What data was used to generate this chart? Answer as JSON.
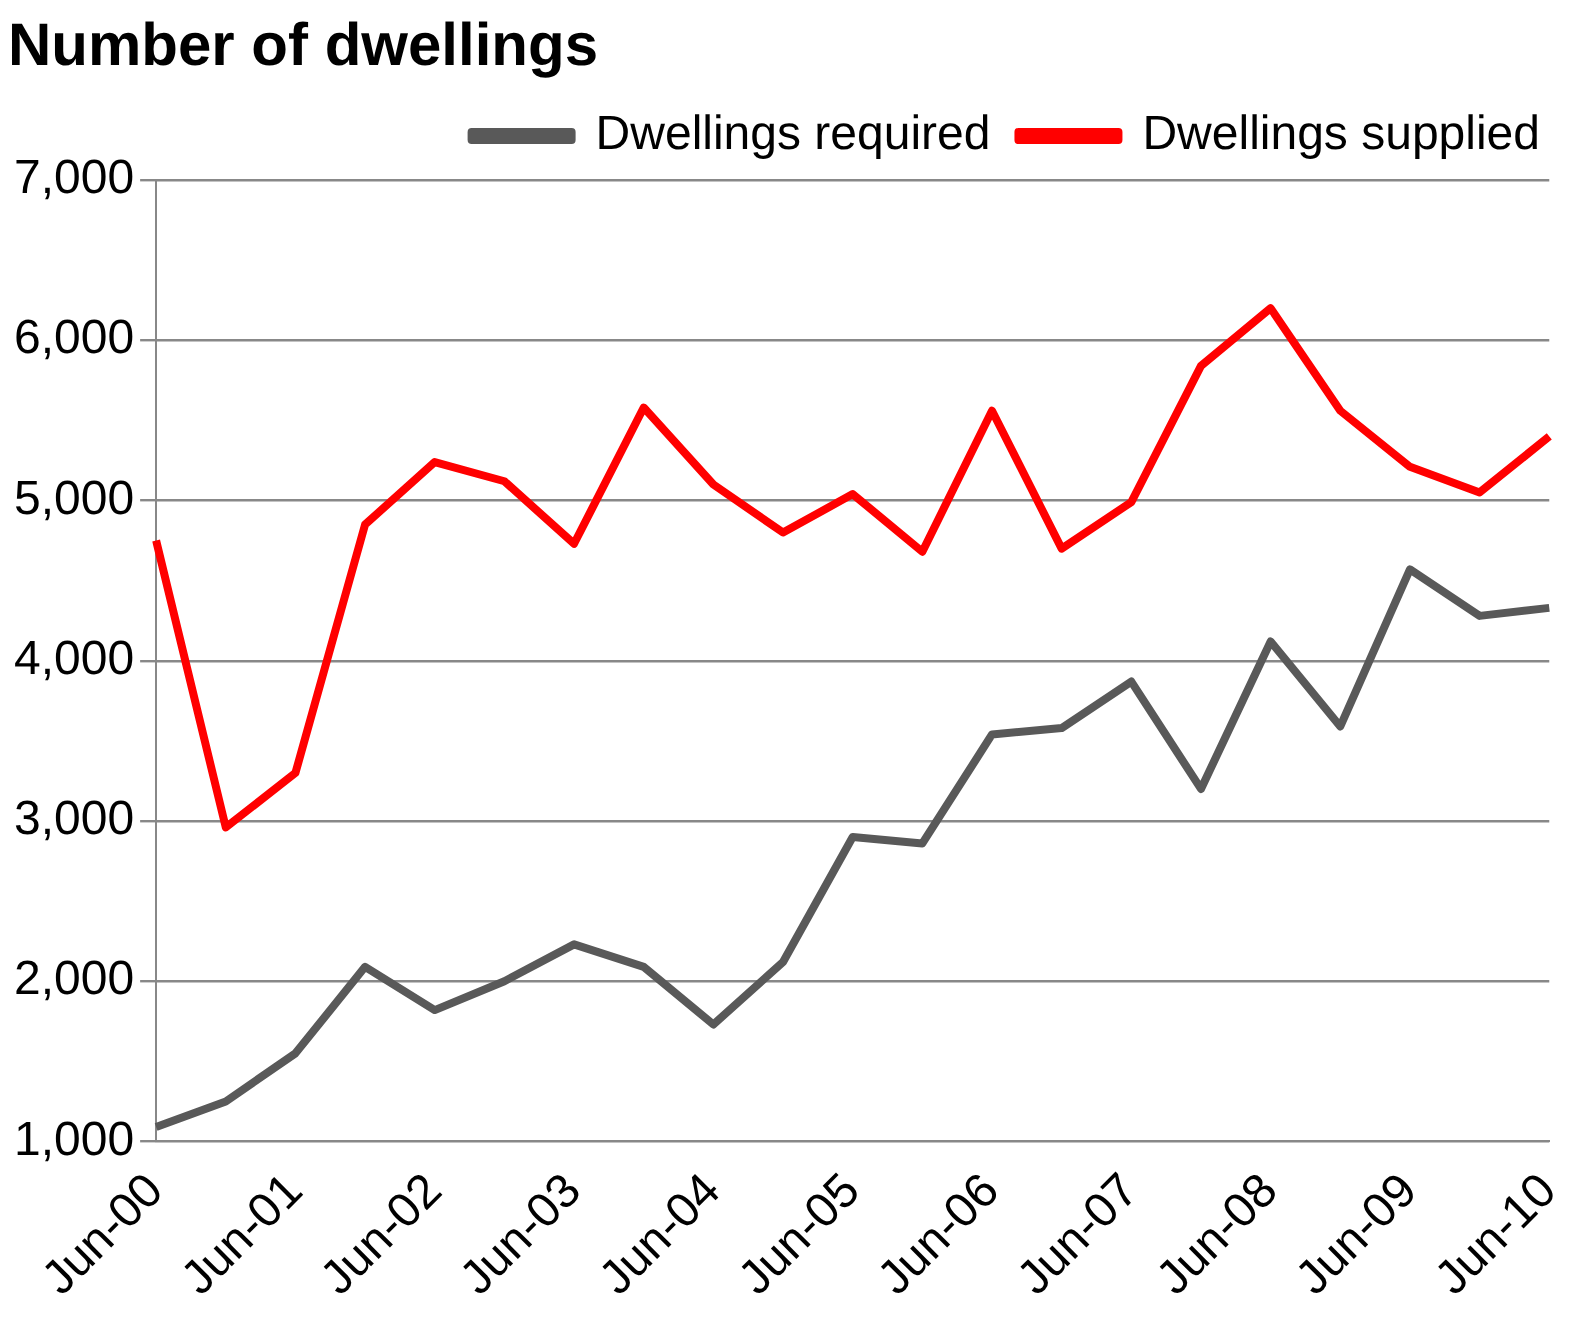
{
  "chart_data": {
    "type": "line",
    "ylabel": "Number of dwellings",
    "categories": [
      "Jun-00",
      null,
      "Jun-01",
      null,
      "Jun-02",
      null,
      "Jun-03",
      null,
      "Jun-04",
      null,
      "Jun-05",
      null,
      "Jun-06",
      null,
      "Jun-07",
      null,
      "Jun-08",
      null,
      "Jun-09",
      null,
      "Jun-10"
    ],
    "series": [
      {
        "name": "Dwellings required",
        "color": "#595959",
        "values": [
          1090,
          1250,
          1550,
          2090,
          1820,
          2000,
          2230,
          2090,
          1730,
          2120,
          2900,
          2860,
          3540,
          3580,
          3870,
          3200,
          4120,
          3590,
          4570,
          4280,
          4330
        ]
      },
      {
        "name": "Dwellings supplied",
        "color": "#ff0000",
        "values": [
          4750,
          2960,
          3300,
          4850,
          5240,
          5120,
          4730,
          5580,
          5100,
          4800,
          5040,
          4680,
          5560,
          4700,
          4990,
          5840,
          6200,
          5560,
          5210,
          5050,
          5400
        ]
      }
    ],
    "ylim": [
      1000,
      7000
    ],
    "yticks": [
      {
        "value": 1000,
        "label": "1,000"
      },
      {
        "value": 2000,
        "label": "2,000"
      },
      {
        "value": 3000,
        "label": "3,000"
      },
      {
        "value": 4000,
        "label": "4,000"
      },
      {
        "value": 5000,
        "label": "5,000"
      },
      {
        "value": 6000,
        "label": "6,000"
      },
      {
        "value": 7000,
        "label": "7,000"
      }
    ],
    "grid": "y",
    "legend": "top",
    "marker": "none",
    "line_style": "solid"
  }
}
